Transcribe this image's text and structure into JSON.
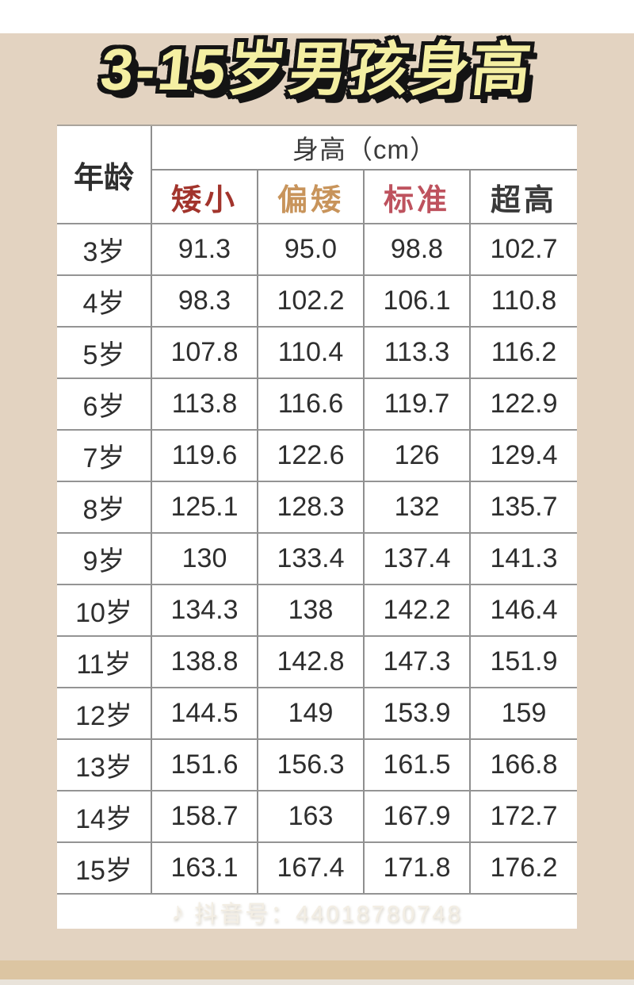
{
  "page": {
    "background": "#e3d3c1",
    "bottom_strip_color": "#dcc5a2",
    "bottom_edge_color": "#e9e3da",
    "title_fill": "#f4efa2",
    "title_outline": "#141414"
  },
  "watermark": {
    "icon": "douyin-music-note",
    "text": "抖音号：44018780748"
  },
  "chart_data": {
    "type": "table",
    "title": "3-15岁男孩身高",
    "corner_header": "年龄",
    "group_header": "身高（cm）",
    "columns": [
      {
        "label": "矮小",
        "color": "#A2342C"
      },
      {
        "label": "偏矮",
        "color": "#C8945B"
      },
      {
        "label": "标准",
        "color": "#BE525E"
      },
      {
        "label": "超高",
        "color": "#3A3A3A"
      }
    ],
    "rows": [
      {
        "age": "3岁",
        "values": [
          "91.3",
          "95.0",
          "98.8",
          "102.7"
        ]
      },
      {
        "age": "4岁",
        "values": [
          "98.3",
          "102.2",
          "106.1",
          "110.8"
        ]
      },
      {
        "age": "5岁",
        "values": [
          "107.8",
          "110.4",
          "113.3",
          "116.2"
        ]
      },
      {
        "age": "6岁",
        "values": [
          "113.8",
          "116.6",
          "119.7",
          "122.9"
        ]
      },
      {
        "age": "7岁",
        "values": [
          "119.6",
          "122.6",
          "126",
          "129.4"
        ]
      },
      {
        "age": "8岁",
        "values": [
          "125.1",
          "128.3",
          "132",
          "135.7"
        ]
      },
      {
        "age": "9岁",
        "values": [
          "130",
          "133.4",
          "137.4",
          "141.3"
        ]
      },
      {
        "age": "10岁",
        "values": [
          "134.3",
          "138",
          "142.2",
          "146.4"
        ]
      },
      {
        "age": "11岁",
        "values": [
          "138.8",
          "142.8",
          "147.3",
          "151.9"
        ]
      },
      {
        "age": "12岁",
        "values": [
          "144.5",
          "149",
          "153.9",
          "159"
        ]
      },
      {
        "age": "13岁",
        "values": [
          "151.6",
          "156.3",
          "161.5",
          "166.8"
        ]
      },
      {
        "age": "14岁",
        "values": [
          "158.7",
          "163",
          "167.9",
          "172.7"
        ]
      },
      {
        "age": "15岁",
        "values": [
          "163.1",
          "167.4",
          "171.8",
          "176.2"
        ]
      }
    ]
  }
}
